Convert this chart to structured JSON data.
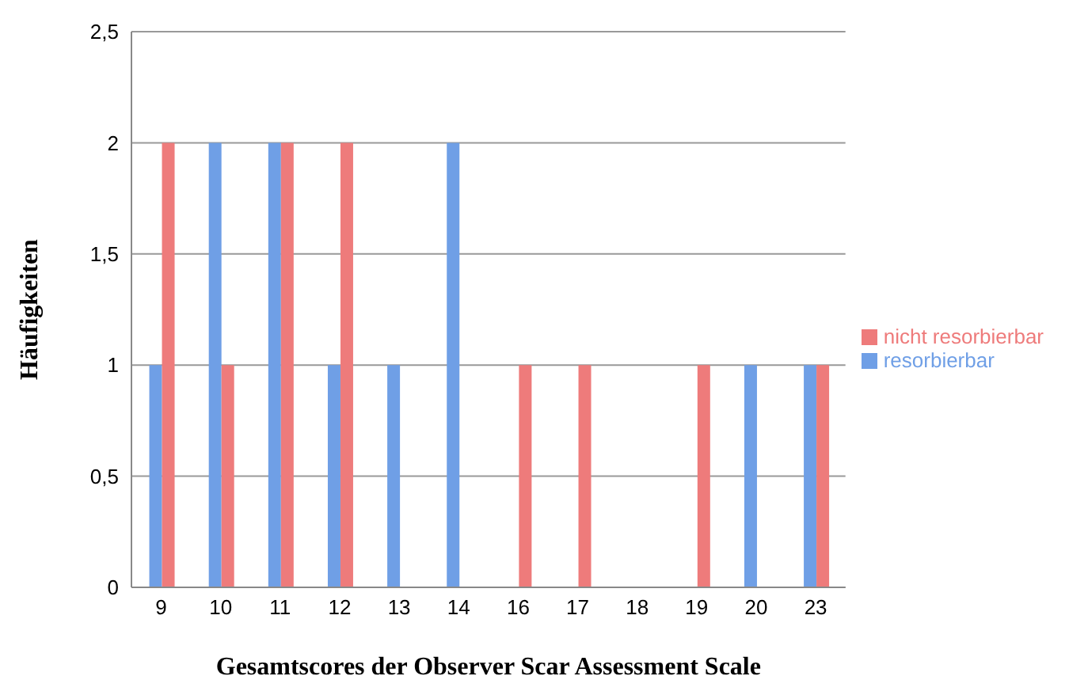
{
  "chart_data": {
    "type": "bar",
    "xlabel": "Gesamtscores der Observer Scar Assessment Scale",
    "ylabel": "Häufigkeiten",
    "categories": [
      "9",
      "10",
      "11",
      "12",
      "13",
      "14",
      "16",
      "17",
      "18",
      "19",
      "20",
      "23"
    ],
    "series": [
      {
        "name": "resorbierbar",
        "color": "#6f9fe6",
        "values": [
          1,
          2,
          2,
          1,
          1,
          2,
          0,
          0,
          0,
          0,
          1,
          1
        ]
      },
      {
        "name": "nicht resorbierbar",
        "color": "#ee7b7b",
        "values": [
          2,
          1,
          2,
          2,
          0,
          0,
          1,
          1,
          0,
          1,
          0,
          1
        ]
      }
    ],
    "ylim": [
      0,
      2.5
    ],
    "yticks": [
      0,
      {
        "value": 0.5,
        "label": "0,5"
      },
      1,
      {
        "value": 1.5,
        "label": "1,5"
      },
      2,
      {
        "value": 2.5,
        "label": "2,5"
      }
    ],
    "grid": "y",
    "legend": "right"
  }
}
